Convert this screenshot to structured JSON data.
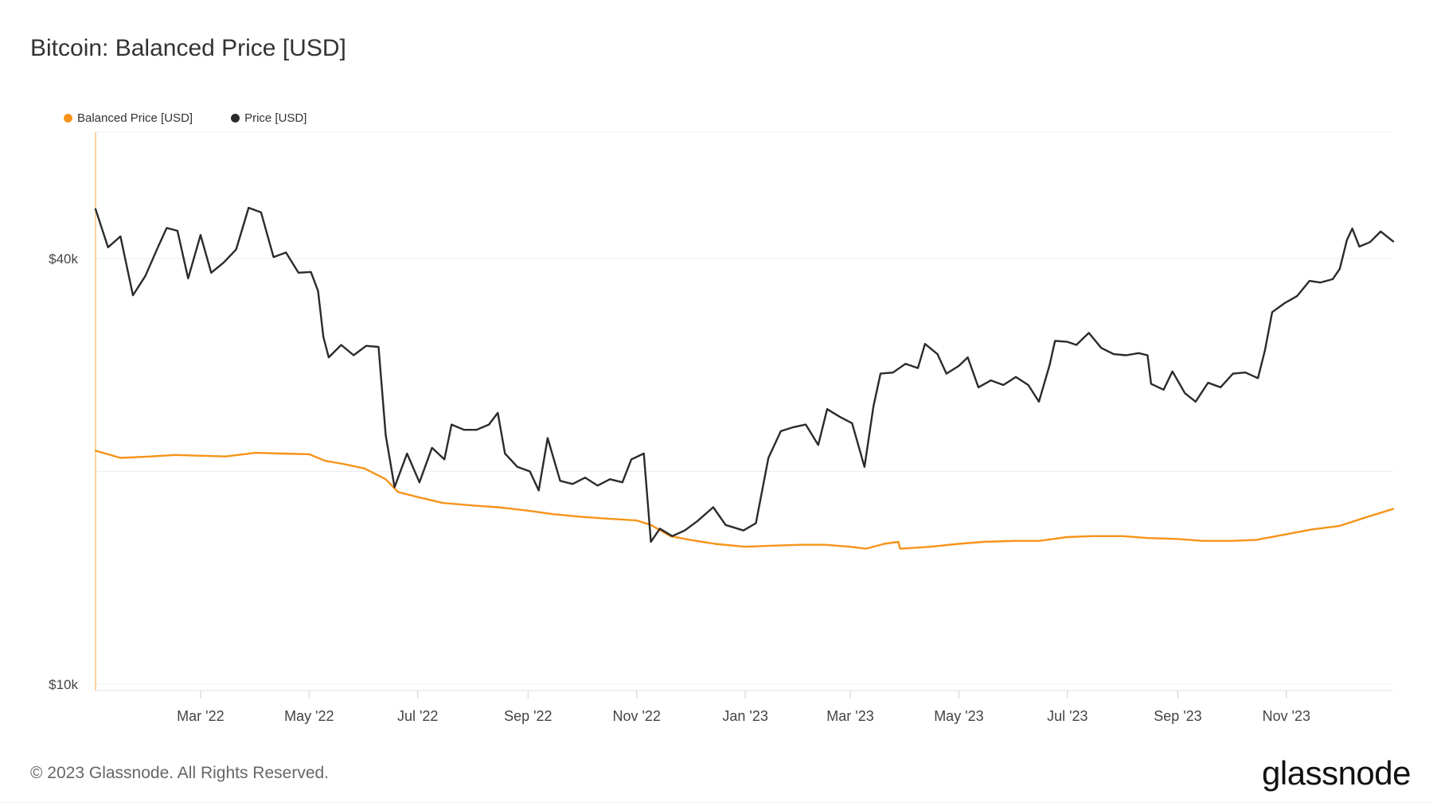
{
  "chart_data": {
    "type": "line",
    "title": "Bitcoin: Balanced Price [USD]",
    "legend": [
      {
        "name": "Balanced Price [USD]",
        "color": "#f7931a"
      },
      {
        "name": "Price [USD]",
        "color": "#2b2b2b"
      }
    ],
    "legend_placement": "top-left",
    "y_scale": "log",
    "y_ticks": [
      {
        "value": 10000,
        "label": "$10k"
      },
      {
        "value": 40000,
        "label": "$40k"
      }
    ],
    "x_ticks": [
      {
        "date": "2022-03-01",
        "label": "Mar '22"
      },
      {
        "date": "2022-05-01",
        "label": "May '22"
      },
      {
        "date": "2022-07-01",
        "label": "Jul '22"
      },
      {
        "date": "2022-09-01",
        "label": "Sep '22"
      },
      {
        "date": "2022-11-01",
        "label": "Nov '22"
      },
      {
        "date": "2023-01-01",
        "label": "Jan '23"
      },
      {
        "date": "2023-03-01",
        "label": "Mar '23"
      },
      {
        "date": "2023-05-01",
        "label": "May '23"
      },
      {
        "date": "2023-07-01",
        "label": "Jul '23"
      },
      {
        "date": "2023-09-01",
        "label": "Sep '23"
      },
      {
        "date": "2023-11-01",
        "label": "Nov '23"
      }
    ],
    "grid": true,
    "series": [
      {
        "name": "Price [USD]",
        "color": "#2b2b2b",
        "points": [
          [
            "2022-01-01",
            47000
          ],
          [
            "2022-01-08",
            41500
          ],
          [
            "2022-01-15",
            43000
          ],
          [
            "2022-01-22",
            35500
          ],
          [
            "2022-01-29",
            37800
          ],
          [
            "2022-02-05",
            41500
          ],
          [
            "2022-02-10",
            44200
          ],
          [
            "2022-02-16",
            43800
          ],
          [
            "2022-02-22",
            37500
          ],
          [
            "2022-03-01",
            43200
          ],
          [
            "2022-03-07",
            38200
          ],
          [
            "2022-03-14",
            39500
          ],
          [
            "2022-03-21",
            41200
          ],
          [
            "2022-03-28",
            47200
          ],
          [
            "2022-04-04",
            46500
          ],
          [
            "2022-04-11",
            40200
          ],
          [
            "2022-04-18",
            40800
          ],
          [
            "2022-04-25",
            38200
          ],
          [
            "2022-05-02",
            38300
          ],
          [
            "2022-05-06",
            36000
          ],
          [
            "2022-05-09",
            31000
          ],
          [
            "2022-05-12",
            29000
          ],
          [
            "2022-05-19",
            30200
          ],
          [
            "2022-05-26",
            29200
          ],
          [
            "2022-06-02",
            30100
          ],
          [
            "2022-06-09",
            30000
          ],
          [
            "2022-06-13",
            22500
          ],
          [
            "2022-06-18",
            19000
          ],
          [
            "2022-06-25",
            21200
          ],
          [
            "2022-07-02",
            19300
          ],
          [
            "2022-07-09",
            21600
          ],
          [
            "2022-07-16",
            20800
          ],
          [
            "2022-07-20",
            23300
          ],
          [
            "2022-07-27",
            22900
          ],
          [
            "2022-08-03",
            22900
          ],
          [
            "2022-08-10",
            23300
          ],
          [
            "2022-08-15",
            24200
          ],
          [
            "2022-08-19",
            21200
          ],
          [
            "2022-08-26",
            20300
          ],
          [
            "2022-09-02",
            20000
          ],
          [
            "2022-09-07",
            18800
          ],
          [
            "2022-09-12",
            22300
          ],
          [
            "2022-09-19",
            19400
          ],
          [
            "2022-09-26",
            19200
          ],
          [
            "2022-10-03",
            19600
          ],
          [
            "2022-10-10",
            19100
          ],
          [
            "2022-10-17",
            19500
          ],
          [
            "2022-10-24",
            19300
          ],
          [
            "2022-10-29",
            20800
          ],
          [
            "2022-11-05",
            21200
          ],
          [
            "2022-11-09",
            15900
          ],
          [
            "2022-11-14",
            16600
          ],
          [
            "2022-11-21",
            16200
          ],
          [
            "2022-11-28",
            16500
          ],
          [
            "2022-12-05",
            17000
          ],
          [
            "2022-12-14",
            17800
          ],
          [
            "2022-12-21",
            16800
          ],
          [
            "2022-12-31",
            16500
          ],
          [
            "2023-01-07",
            16900
          ],
          [
            "2023-01-14",
            20900
          ],
          [
            "2023-01-21",
            22800
          ],
          [
            "2023-01-28",
            23100
          ],
          [
            "2023-02-04",
            23300
          ],
          [
            "2023-02-11",
            21800
          ],
          [
            "2023-02-16",
            24500
          ],
          [
            "2023-02-23",
            23900
          ],
          [
            "2023-03-02",
            23400
          ],
          [
            "2023-03-09",
            20300
          ],
          [
            "2023-03-14",
            24700
          ],
          [
            "2023-03-18",
            27500
          ],
          [
            "2023-03-25",
            27600
          ],
          [
            "2023-04-01",
            28400
          ],
          [
            "2023-04-08",
            28000
          ],
          [
            "2023-04-12",
            30300
          ],
          [
            "2023-04-19",
            29300
          ],
          [
            "2023-04-24",
            27500
          ],
          [
            "2023-05-01",
            28200
          ],
          [
            "2023-05-06",
            29000
          ],
          [
            "2023-05-12",
            26300
          ],
          [
            "2023-05-19",
            26900
          ],
          [
            "2023-05-26",
            26500
          ],
          [
            "2023-06-02",
            27200
          ],
          [
            "2023-06-09",
            26500
          ],
          [
            "2023-06-15",
            25100
          ],
          [
            "2023-06-21",
            28300
          ],
          [
            "2023-06-24",
            30600
          ],
          [
            "2023-07-01",
            30500
          ],
          [
            "2023-07-06",
            30200
          ],
          [
            "2023-07-13",
            31400
          ],
          [
            "2023-07-20",
            29900
          ],
          [
            "2023-07-27",
            29300
          ],
          [
            "2023-08-03",
            29200
          ],
          [
            "2023-08-10",
            29400
          ],
          [
            "2023-08-15",
            29200
          ],
          [
            "2023-08-17",
            26600
          ],
          [
            "2023-08-24",
            26100
          ],
          [
            "2023-08-29",
            27700
          ],
          [
            "2023-09-05",
            25800
          ],
          [
            "2023-09-11",
            25100
          ],
          [
            "2023-09-18",
            26700
          ],
          [
            "2023-09-25",
            26300
          ],
          [
            "2023-10-02",
            27500
          ],
          [
            "2023-10-09",
            27600
          ],
          [
            "2023-10-16",
            27100
          ],
          [
            "2023-10-20",
            29700
          ],
          [
            "2023-10-24",
            33600
          ],
          [
            "2023-10-31",
            34600
          ],
          [
            "2023-11-07",
            35400
          ],
          [
            "2023-11-14",
            37200
          ],
          [
            "2023-11-20",
            37000
          ],
          [
            "2023-11-27",
            37400
          ],
          [
            "2023-12-01",
            38700
          ],
          [
            "2023-12-05",
            42500
          ],
          [
            "2023-12-08",
            44100
          ],
          [
            "2023-12-12",
            41600
          ],
          [
            "2023-12-18",
            42200
          ],
          [
            "2023-12-24",
            43700
          ],
          [
            "2023-12-31",
            42300
          ]
        ]
      },
      {
        "name": "Balanced Price [USD]",
        "color": "#f7931a",
        "points": [
          [
            "2022-01-01",
            21400
          ],
          [
            "2022-01-15",
            20900
          ],
          [
            "2022-02-01",
            21000
          ],
          [
            "2022-02-15",
            21100
          ],
          [
            "2022-03-01",
            21050
          ],
          [
            "2022-03-15",
            21000
          ],
          [
            "2022-04-01",
            21250
          ],
          [
            "2022-04-15",
            21200
          ],
          [
            "2022-05-01",
            21150
          ],
          [
            "2022-05-10",
            20700
          ],
          [
            "2022-05-20",
            20500
          ],
          [
            "2022-06-01",
            20200
          ],
          [
            "2022-06-13",
            19500
          ],
          [
            "2022-06-20",
            18700
          ],
          [
            "2022-07-01",
            18400
          ],
          [
            "2022-07-15",
            18050
          ],
          [
            "2022-08-01",
            17900
          ],
          [
            "2022-08-15",
            17800
          ],
          [
            "2022-09-01",
            17600
          ],
          [
            "2022-09-15",
            17400
          ],
          [
            "2022-10-01",
            17250
          ],
          [
            "2022-10-15",
            17150
          ],
          [
            "2022-11-01",
            17050
          ],
          [
            "2022-11-09",
            16800
          ],
          [
            "2022-11-20",
            16200
          ],
          [
            "2022-12-01",
            16000
          ],
          [
            "2022-12-15",
            15800
          ],
          [
            "2023-01-01",
            15650
          ],
          [
            "2023-01-15",
            15700
          ],
          [
            "2023-02-01",
            15750
          ],
          [
            "2023-02-15",
            15750
          ],
          [
            "2023-03-01",
            15650
          ],
          [
            "2023-03-10",
            15550
          ],
          [
            "2023-03-20",
            15800
          ],
          [
            "2023-03-28",
            15900
          ],
          [
            "2023-03-29",
            15550
          ],
          [
            "2023-04-15",
            15650
          ],
          [
            "2023-05-01",
            15800
          ],
          [
            "2023-05-15",
            15900
          ],
          [
            "2023-06-01",
            15950
          ],
          [
            "2023-06-15",
            15950
          ],
          [
            "2023-07-01",
            16150
          ],
          [
            "2023-07-15",
            16200
          ],
          [
            "2023-08-01",
            16200
          ],
          [
            "2023-08-15",
            16100
          ],
          [
            "2023-09-01",
            16050
          ],
          [
            "2023-09-15",
            15950
          ],
          [
            "2023-10-01",
            15950
          ],
          [
            "2023-10-15",
            16000
          ],
          [
            "2023-11-01",
            16300
          ],
          [
            "2023-11-15",
            16550
          ],
          [
            "2023-12-01",
            16750
          ],
          [
            "2023-12-15",
            17200
          ],
          [
            "2023-12-31",
            17700
          ]
        ]
      }
    ]
  },
  "footer": {
    "copyright": "© 2023 Glassnode. All Rights Reserved.",
    "logo": "glassnode"
  }
}
